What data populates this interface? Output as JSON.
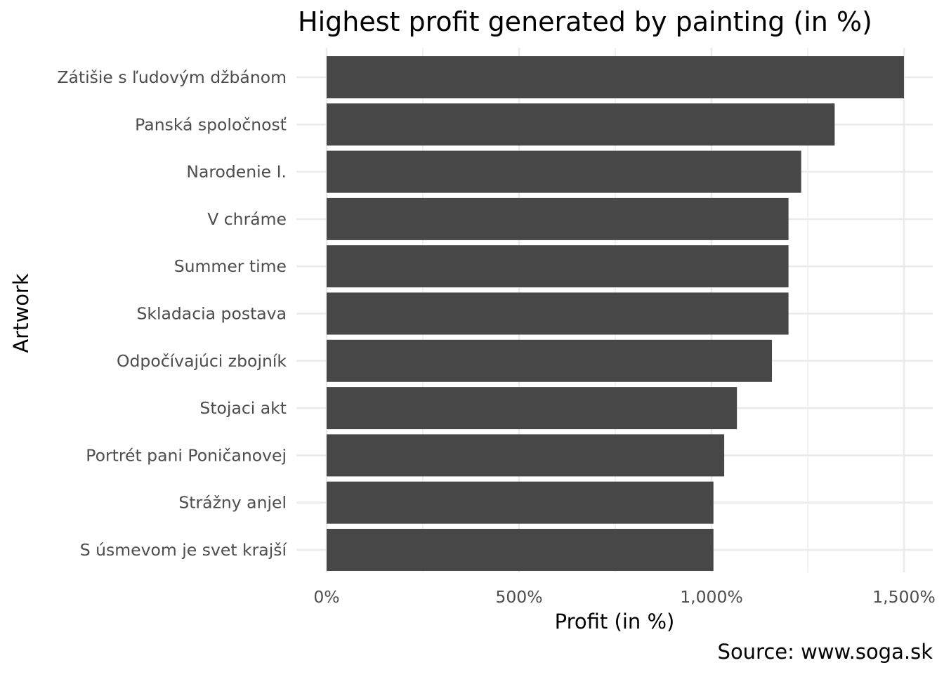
{
  "chart_data": {
    "type": "bar",
    "orientation": "horizontal",
    "title": "Highest profit generated by painting (in %)",
    "xlabel": "Profit (in %)",
    "ylabel": "Artwork",
    "caption": "Source: www.soga.sk",
    "categories": [
      "Zátišie s ľudovým džbánom",
      "Panská spoločnosť",
      "Narodenie I.",
      "V chráme",
      "Summer time",
      "Skladacia postava",
      "Odpočívajúci zbojník",
      "Stojaci akt",
      "Portrét pani Poničanovej",
      "Strážny anjel",
      "S úsmevom je svet krajší"
    ],
    "values": [
      1500,
      1320,
      1233,
      1200,
      1200,
      1200,
      1157,
      1066,
      1033,
      1005,
      1005
    ],
    "xlim": [
      0,
      1500
    ],
    "xticks": [
      0,
      500,
      1000,
      1500
    ],
    "xtick_labels": [
      "0%",
      "500%",
      "1,000%",
      "1,500%"
    ],
    "grid": true,
    "bar_color": "#474747",
    "theme": "minimal"
  }
}
